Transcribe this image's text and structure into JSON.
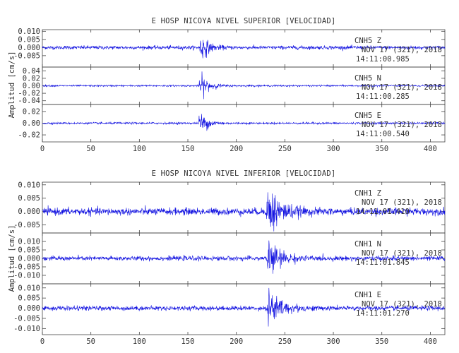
{
  "chart_data": [
    {
      "type": "line",
      "title": "E HOSP NICOYA NIVEL SUPERIOR [VELOCIDAD]",
      "xlabel": "",
      "ylabel": "Amplitud [cm/s]",
      "xlim": [
        0,
        415
      ],
      "x_ticks": [
        0,
        50,
        100,
        150,
        200,
        250,
        300,
        350,
        400
      ],
      "x_tick_labels": [
        "0",
        "50",
        "100",
        "150",
        "200",
        "250",
        "300",
        "350",
        "400"
      ],
      "series_color": "#1010e0",
      "traces": [
        {
          "station": "CNH5",
          "component": "Z",
          "date": "NOV 17 (321), 2018",
          "time": "14:11:00.985",
          "ylim": [
            -0.012,
            0.011
          ],
          "y_ticks": [
            0.01,
            0.005,
            0.0,
            -0.005
          ],
          "y_tick_labels": [
            "0.010",
            "0.005",
            "0.000",
            "-0.005"
          ],
          "noise_amplitude": 0.001,
          "event_onset": 162,
          "event_peak_amplitude": 0.0095,
          "event_decay": 7
        },
        {
          "station": "CNH5",
          "component": "N",
          "date": "NOV 17 (321), 2018",
          "time": "14:11:00.285",
          "ylim": [
            -0.05,
            0.05
          ],
          "y_ticks": [
            0.04,
            0.02,
            0.0,
            -0.02,
            -0.04
          ],
          "y_tick_labels": [
            "0.04",
            "0.02",
            "0.00",
            "-0.02",
            "-0.04"
          ],
          "noise_amplitude": 0.002,
          "event_onset": 161,
          "event_peak_amplitude": 0.038,
          "event_decay": 8
        },
        {
          "station": "CNH5",
          "component": "E",
          "date": "NOV 17 (321), 2018",
          "time": "14:11:00.540",
          "ylim": [
            -0.032,
            0.032
          ],
          "y_ticks": [
            0.02,
            0.0,
            -0.02
          ],
          "y_tick_labels": [
            "0.02",
            "0.00",
            "-0.02"
          ],
          "noise_amplitude": 0.0015,
          "event_onset": 161,
          "event_peak_amplitude": 0.022,
          "event_decay": 8
        }
      ]
    },
    {
      "type": "line",
      "title": "E HOSP NICOYA NIVEL INFERIOR [VELOCIDAD]",
      "xlabel": "",
      "ylabel": "Amplitud [cm/s]",
      "xlim": [
        0,
        415
      ],
      "x_ticks": [
        0,
        50,
        100,
        150,
        200,
        250,
        300,
        350,
        400
      ],
      "x_tick_labels": [
        "0",
        "50",
        "100",
        "150",
        "200",
        "250",
        "300",
        "350",
        "400"
      ],
      "series_color": "#1010e0",
      "traces": [
        {
          "station": "CNH1",
          "component": "Z",
          "date": "NOV 17 (321), 2018",
          "time": "14:11:01.410",
          "ylim": [
            -0.008,
            0.011
          ],
          "y_ticks": [
            0.01,
            0.005,
            0.0,
            -0.005
          ],
          "y_tick_labels": [
            "0.010",
            "0.005",
            "0.000",
            "-0.005"
          ],
          "noise_amplitude": 0.0012,
          "event_onset": 231,
          "event_peak_amplitude": 0.0105,
          "event_decay": 12
        },
        {
          "station": "CNH1",
          "component": "N",
          "date": "NOV 17 (321), 2018",
          "time": "14:11:01.845",
          "ylim": [
            -0.015,
            0.015
          ],
          "y_ticks": [
            0.01,
            0.005,
            0.0,
            -0.005,
            -0.01
          ],
          "y_tick_labels": [
            "0.010",
            "0.005",
            "0.000",
            "-0.005",
            "-0.010"
          ],
          "noise_amplitude": 0.0012,
          "event_onset": 231,
          "event_peak_amplitude": 0.012,
          "event_decay": 12
        },
        {
          "station": "CNH1",
          "component": "E",
          "date": "NOV 17 (321), 2018",
          "time": "14:11:01.270",
          "ylim": [
            -0.013,
            0.012
          ],
          "y_ticks": [
            0.01,
            0.005,
            0.0,
            -0.005,
            -0.01
          ],
          "y_tick_labels": [
            "0.010",
            "0.005",
            "0.000",
            "-0.005",
            "-0.010"
          ],
          "noise_amplitude": 0.001,
          "event_onset": 231,
          "event_peak_amplitude": 0.0105,
          "event_decay": 12
        }
      ]
    }
  ]
}
